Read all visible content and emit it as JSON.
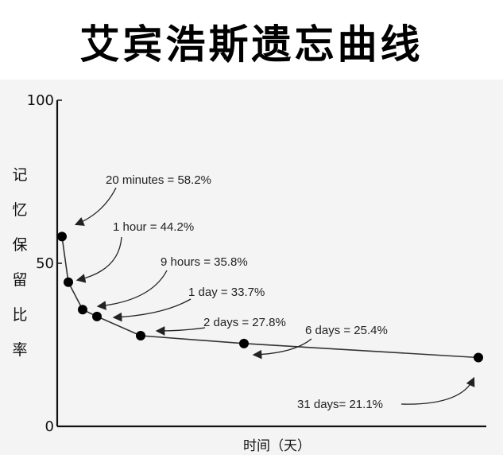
{
  "chart_data": {
    "type": "line",
    "title": "艾宾浩斯遗忘曲线",
    "xlabel": "时间（天）",
    "ylabel": "记忆保留比率",
    "ylim": [
      0,
      100
    ],
    "yticks": [
      "0",
      "50",
      "100"
    ],
    "grid": false,
    "legend": "none",
    "line_color": "#333333",
    "point_color": "#000000",
    "series": [
      {
        "points": [
          {
            "x": "20 minutes",
            "y": 58.2,
            "label": "20 minutes = 58.2%"
          },
          {
            "x": "1 hour",
            "y": 44.2,
            "label": "1 hour = 44.2%"
          },
          {
            "x": "9 hours",
            "y": 35.8,
            "label": "9 hours = 35.8%"
          },
          {
            "x": "1 day",
            "y": 33.7,
            "label": "1 day = 33.7%"
          },
          {
            "x": "2 days",
            "y": 27.8,
            "label": "2 days = 27.8%"
          },
          {
            "x": "6 days",
            "y": 25.4,
            "label": "6 days = 25.4%"
          },
          {
            "x": "31 days",
            "y": 21.1,
            "label": "31 days= 21.1%"
          }
        ]
      }
    ]
  }
}
